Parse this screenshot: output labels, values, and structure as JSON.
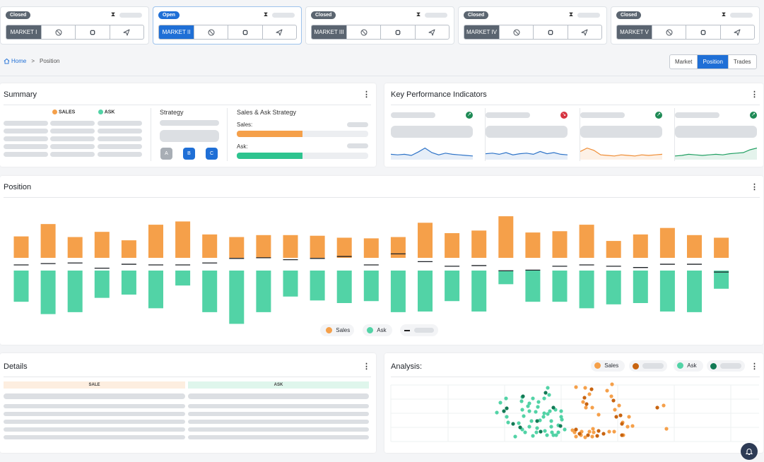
{
  "markets": [
    {
      "status": "Closed",
      "name": "MARKET I",
      "active": false
    },
    {
      "status": "Open",
      "name": "MARKET II",
      "active": true
    },
    {
      "status": "Closed",
      "name": "MARKET III",
      "active": false
    },
    {
      "status": "Closed",
      "name": "MARKET IV",
      "active": false
    },
    {
      "status": "Closed",
      "name": "MARKET V",
      "active": false
    }
  ],
  "market_button_icons": [
    "block-icon",
    "chip-icon",
    "send-icon"
  ],
  "breadcrumb": {
    "home": "Home",
    "separator": ">",
    "current": "Position"
  },
  "view_tabs": [
    {
      "label": "Market",
      "selected": false
    },
    {
      "label": "Position",
      "selected": true
    },
    {
      "label": "Trades",
      "selected": false
    }
  ],
  "summary": {
    "title": "Summary",
    "legend_sales": "SALES",
    "legend_ask": "ASK",
    "strategy_title": "Strategy",
    "strategy_buttons": [
      "A",
      "B",
      "C"
    ],
    "sales_ask_title": "Sales & Ask Strategy",
    "sales_label": "Sales:",
    "ask_label": "Ask:",
    "sales_fill": 0.5,
    "ask_fill": 0.5
  },
  "kpi": {
    "title": "Key Performance Indicators",
    "cards": [
      {
        "trend": "up",
        "color": "#2f74c8"
      },
      {
        "trend": "down",
        "color": "#2f74c8"
      },
      {
        "trend": "up",
        "color": "#ef8c33"
      },
      {
        "trend": "up",
        "color": "#22a063"
      }
    ]
  },
  "position": {
    "title": "Position",
    "legend_sales": "Sales",
    "legend_ask": "Ask"
  },
  "details": {
    "title": "Details",
    "col_sale": "SALE",
    "col_ask": "ASK"
  },
  "analysis": {
    "title": "Analysis:",
    "legend_sales": "Sales",
    "legend_ask": "Ask"
  },
  "colors": {
    "sales": "#f5a04a",
    "ask": "#52d3a6",
    "sales_dark": "#c86410",
    "ask_dark": "#127a55",
    "accent": "#1f6fd6"
  },
  "chart_data": {
    "type": "bar",
    "series": [
      {
        "name": "Sales",
        "values": [
          0.33,
          0.52,
          0.32,
          0.4,
          0.27,
          0.51,
          0.56,
          0.36,
          0.32,
          0.35,
          0.35,
          0.34,
          0.31,
          0.3,
          0.32,
          0.54,
          0.38,
          0.42,
          0.64,
          0.39,
          0.41,
          0.51,
          0.26,
          0.36,
          0.46,
          0.35,
          0.31
        ]
      },
      {
        "name": "Ask",
        "values": [
          -0.48,
          -0.67,
          -0.64,
          -0.42,
          -0.37,
          -0.58,
          -0.23,
          -0.64,
          -0.82,
          -0.64,
          -0.4,
          -0.46,
          -0.5,
          -0.47,
          -0.64,
          -0.63,
          -0.47,
          -0.63,
          -0.21,
          -0.48,
          -0.48,
          -0.58,
          -0.52,
          -0.5,
          -0.63,
          -0.64,
          -0.28
        ]
      },
      {
        "name": "",
        "values": [
          0.0,
          0.02,
          0.03,
          -0.05,
          0.01,
          0.0,
          0.0,
          0.03,
          0.1,
          0.11,
          0.08,
          0.1,
          0.13,
          0.0,
          0.17,
          0.05,
          -0.02,
          -0.01,
          -0.09,
          -0.08,
          -0.02,
          0.0,
          -0.02,
          -0.04,
          0.01,
          0.01,
          -0.11
        ]
      }
    ]
  },
  "scatter_data": {
    "type": "scatter",
    "series": [
      {
        "name": "Sales",
        "points": [
          [
            828,
            549
          ],
          [
            815,
            548
          ],
          [
            834,
            558
          ],
          [
            825,
            569
          ],
          [
            866,
            544
          ],
          [
            859,
            553
          ],
          [
            865,
            561
          ],
          [
            876,
            574
          ],
          [
            870,
            580
          ],
          [
            895,
            603
          ],
          [
            881,
            598
          ],
          [
            882,
            616
          ],
          [
            869,
            611
          ],
          [
            862,
            611
          ],
          [
            838,
            577
          ],
          [
            829,
            577
          ],
          [
            810,
            609
          ],
          [
            823,
            611
          ],
          [
            828,
            619
          ],
          [
            840,
            612
          ],
          [
            838,
            618
          ],
          [
            813,
            612
          ],
          [
            815,
            618
          ],
          [
            822,
            616
          ],
          [
            939,
            574
          ],
          [
            943,
            607
          ],
          [
            888,
            604
          ],
          [
            847,
            587
          ],
          [
            839,
            607
          ],
          [
            834,
            611
          ],
          [
            890,
            590
          ]
        ]
      },
      {
        "name": "",
        "points": [
          [
            837,
            551
          ],
          [
            868,
            567
          ],
          [
            872,
            590
          ],
          [
            880,
            600
          ],
          [
            880,
            616
          ],
          [
            878,
            588
          ],
          [
            854,
            614
          ],
          [
            847,
            610
          ],
          [
            830,
            572
          ],
          [
            815,
            608
          ],
          [
            820,
            614
          ],
          [
            832,
            616
          ],
          [
            845,
            617
          ],
          [
            930,
            577
          ],
          [
            827,
            563
          ]
        ]
      },
      {
        "name": "Ask",
        "points": [
          [
            739,
            562
          ],
          [
            738,
            568
          ],
          [
            739,
            580
          ],
          [
            749,
            582
          ],
          [
            775,
            549
          ],
          [
            777,
            559
          ],
          [
            762,
            569
          ],
          [
            749,
            571
          ],
          [
            770,
            564
          ],
          [
            754,
            564
          ],
          [
            747,
            575
          ],
          [
            761,
            576
          ],
          [
            778,
            582
          ],
          [
            775,
            586
          ],
          [
            786,
            580
          ],
          [
            794,
            582
          ],
          [
            795,
            594
          ],
          [
            790,
            602
          ],
          [
            780,
            596
          ],
          [
            769,
            590
          ],
          [
            764,
            595
          ],
          [
            760,
            606
          ],
          [
            759,
            612
          ],
          [
            754,
            617
          ],
          [
            743,
            612
          ],
          [
            749,
            604
          ],
          [
            739,
            608
          ],
          [
            734,
            599
          ],
          [
            781,
            612
          ],
          [
            771,
            610
          ],
          [
            780,
            604
          ],
          [
            783,
            616
          ],
          [
            774,
            616
          ],
          [
            790,
            612
          ],
          [
            799,
            608
          ],
          [
            758,
            583
          ],
          [
            770,
            585
          ],
          [
            717,
            590
          ],
          [
            703,
            584
          ],
          [
            708,
            570
          ],
          [
            716,
            564
          ],
          [
            719,
            598
          ],
          [
            752,
            596
          ],
          [
            741,
            589
          ],
          [
            729,
            618
          ],
          [
            794,
            590
          ],
          [
            787,
            616
          ]
        ]
      },
      {
        "name": "",
        "points": [
          [
            740,
            561
          ],
          [
            717,
            578
          ],
          [
            713,
            582
          ],
          [
            726,
            600
          ],
          [
            736,
            605
          ],
          [
            765,
            611
          ],
          [
            760,
            596
          ],
          [
            772,
            556
          ],
          [
            783,
            577
          ],
          [
            793,
            603
          ]
        ]
      }
    ]
  }
}
